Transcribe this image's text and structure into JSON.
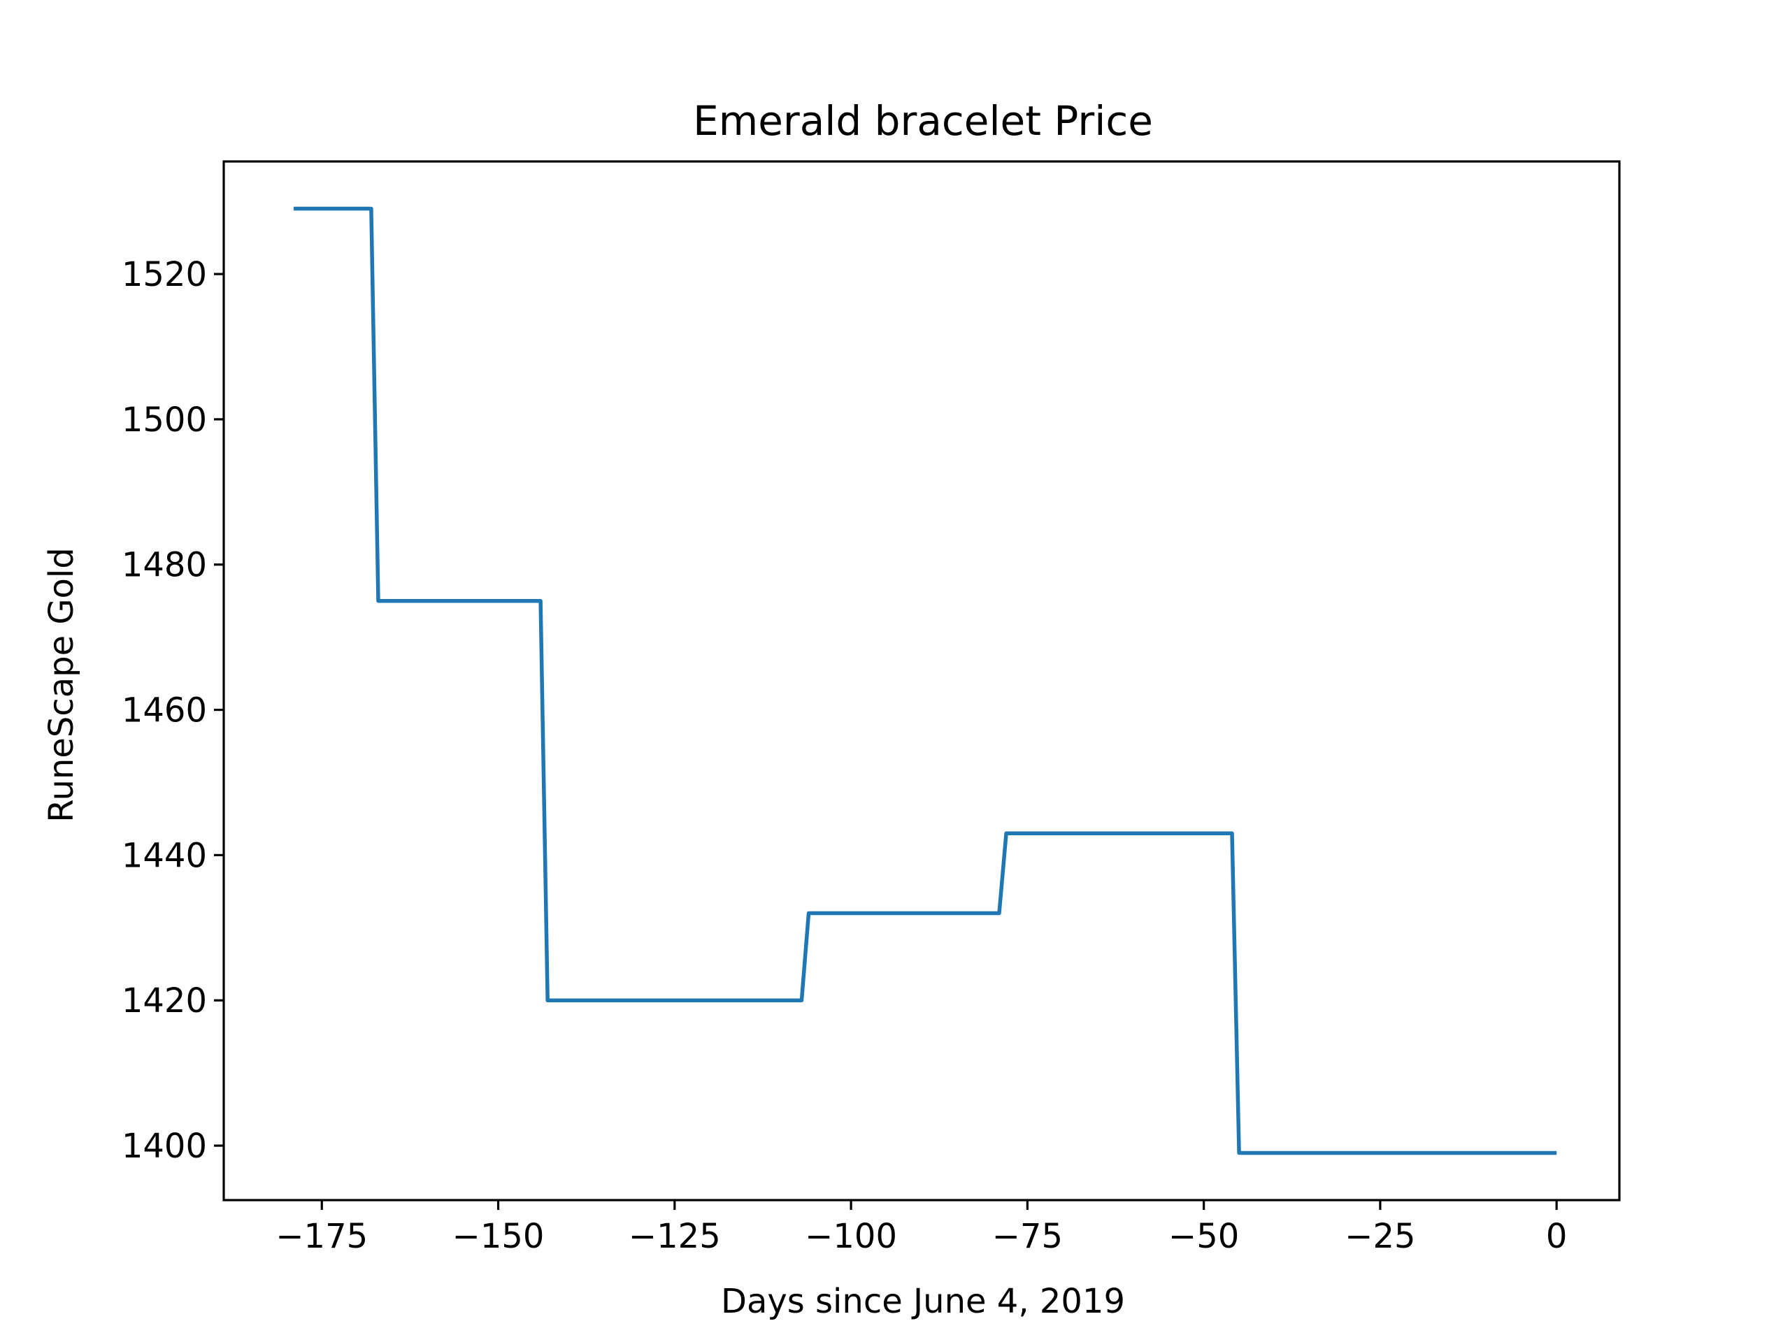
{
  "chart_data": {
    "type": "line",
    "title": "Emerald bracelet Price",
    "xlabel": "Days since June 4, 2019",
    "ylabel": "RuneScape Gold",
    "xlim": [
      -188.9,
      8.9
    ],
    "ylim": [
      1392.5,
      1535.5
    ],
    "xticks": [
      -175,
      -150,
      -125,
      -100,
      -75,
      -50,
      -25,
      0
    ],
    "xtick_labels": [
      "−175",
      "−150",
      "−125",
      "−100",
      "−75",
      "−50",
      "−25",
      "0"
    ],
    "yticks": [
      1400,
      1420,
      1440,
      1460,
      1480,
      1500,
      1520
    ],
    "ytick_labels": [
      "1400",
      "1420",
      "1440",
      "1460",
      "1480",
      "1500",
      "1520"
    ],
    "grid": false,
    "line_color": "#1f77b4",
    "series": [
      {
        "x": [
          -179,
          -168,
          -167,
          -144,
          -143,
          -107,
          -106,
          -79,
          -78,
          -46,
          -45,
          0
        ],
        "y": [
          1529,
          1529,
          1475,
          1475,
          1420,
          1420,
          1432,
          1432,
          1443,
          1443,
          1399,
          1399
        ]
      }
    ]
  }
}
